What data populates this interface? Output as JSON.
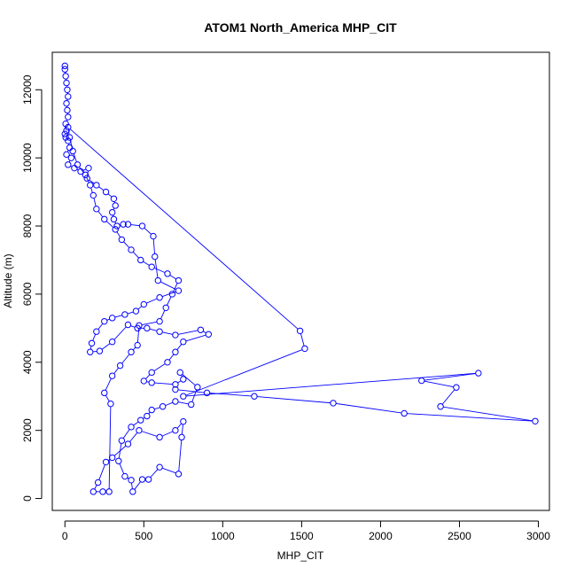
{
  "chart_data": {
    "type": "line",
    "title": "ATOM1 North_America MHP_CIT",
    "xlabel": "MHP_CIT",
    "ylabel": "Altitude (m)",
    "xlim": [
      -80,
      3070
    ],
    "ylim": [
      -350,
      13100
    ],
    "xticks": [
      0,
      500,
      1000,
      1500,
      2000,
      2500,
      3000
    ],
    "yticks": [
      0,
      2000,
      4000,
      6000,
      8000,
      10000,
      12000
    ],
    "xtick_labels": [
      "0",
      "500",
      "1000",
      "1500",
      "2000",
      "2500",
      "3000"
    ],
    "ytick_labels": [
      "0",
      "2000",
      "4000",
      "6000",
      "8000",
      "10000",
      "12000"
    ],
    "grid": false,
    "legend": "none",
    "series": [
      {
        "color": "#0000ff",
        "marker": "open-circle",
        "points": [
          [
            0,
            12700
          ],
          [
            0,
            12600
          ],
          [
            5,
            12400
          ],
          [
            10,
            12200
          ],
          [
            15,
            12000
          ],
          [
            20,
            11800
          ],
          [
            10,
            11600
          ],
          [
            15,
            11400
          ],
          [
            20,
            11200
          ],
          [
            5,
            11000
          ],
          [
            10,
            10800
          ],
          [
            0,
            10700
          ],
          [
            5,
            10600
          ],
          [
            20,
            10500
          ],
          [
            30,
            10300
          ],
          [
            10,
            10100
          ],
          [
            40,
            10000
          ],
          [
            20,
            9800
          ],
          [
            60,
            9700
          ],
          [
            100,
            9600
          ],
          [
            150,
            9700
          ],
          [
            140,
            9400
          ],
          [
            200,
            9200
          ],
          [
            260,
            9000
          ],
          [
            310,
            8800
          ],
          [
            320,
            8600
          ],
          [
            300,
            8400
          ],
          [
            310,
            8200
          ],
          [
            330,
            8000
          ],
          [
            370,
            8050
          ],
          [
            400,
            8050
          ],
          [
            490,
            8000
          ],
          [
            560,
            7700
          ],
          [
            570,
            7100
          ],
          [
            590,
            6400
          ],
          [
            720,
            6100
          ],
          [
            600,
            5900
          ],
          [
            500,
            5700
          ],
          [
            450,
            5500
          ],
          [
            380,
            5400
          ],
          [
            300,
            5300
          ],
          [
            250,
            5200
          ],
          [
            200,
            4900
          ],
          [
            170,
            4560
          ],
          [
            160,
            4300
          ],
          [
            220,
            4330
          ],
          [
            300,
            4600
          ],
          [
            400,
            5100
          ],
          [
            460,
            5000
          ],
          [
            520,
            5000
          ],
          [
            600,
            4900
          ],
          [
            700,
            4800
          ],
          [
            860,
            4950
          ],
          [
            910,
            4820
          ],
          [
            750,
            4600
          ],
          [
            700,
            4300
          ],
          [
            650,
            4000
          ],
          [
            550,
            3700
          ],
          [
            500,
            3450
          ],
          [
            550,
            3400
          ],
          [
            700,
            3350
          ],
          [
            750,
            3500
          ],
          [
            730,
            3700
          ],
          [
            840,
            3270
          ],
          [
            800,
            2760
          ],
          [
            700,
            2850
          ],
          [
            620,
            2700
          ],
          [
            550,
            2600
          ],
          [
            520,
            2420
          ],
          [
            480,
            2300
          ],
          [
            420,
            2100
          ],
          [
            360,
            1700
          ],
          [
            340,
            1100
          ],
          [
            380,
            650
          ],
          [
            420,
            540
          ],
          [
            430,
            200
          ],
          [
            490,
            560
          ],
          [
            530,
            560
          ],
          [
            600,
            920
          ],
          [
            720,
            720
          ],
          [
            740,
            1800
          ],
          [
            750,
            2260
          ],
          [
            700,
            2000
          ],
          [
            600,
            1800
          ],
          [
            470,
            2000
          ],
          [
            400,
            1600
          ],
          [
            300,
            1200
          ],
          [
            260,
            1070
          ],
          [
            210,
            470
          ],
          [
            180,
            200
          ],
          [
            240,
            200
          ],
          [
            280,
            200
          ],
          [
            290,
            2780
          ],
          [
            250,
            3100
          ],
          [
            300,
            3600
          ],
          [
            350,
            3900
          ],
          [
            420,
            4300
          ],
          [
            460,
            4500
          ],
          [
            470,
            5080
          ],
          [
            600,
            5200
          ],
          [
            640,
            5600
          ],
          [
            680,
            6000
          ],
          [
            720,
            6400
          ],
          [
            650,
            6600
          ],
          [
            550,
            6800
          ],
          [
            480,
            7000
          ],
          [
            420,
            7300
          ],
          [
            360,
            7600
          ],
          [
            320,
            7900
          ],
          [
            250,
            8200
          ],
          [
            200,
            8500
          ],
          [
            180,
            8900
          ],
          [
            160,
            9200
          ],
          [
            130,
            9500
          ],
          [
            80,
            9800
          ],
          [
            50,
            10200
          ],
          [
            30,
            10600
          ],
          [
            20,
            10900
          ],
          [
            1490,
            4920
          ],
          [
            1520,
            4400
          ],
          [
            750,
            3000
          ],
          [
            2620,
            3680
          ],
          [
            2260,
            3460
          ],
          [
            2480,
            3260
          ],
          [
            2380,
            2700
          ],
          [
            2980,
            2270
          ],
          [
            2150,
            2500
          ],
          [
            1700,
            2800
          ],
          [
            1200,
            3000
          ],
          [
            900,
            3100
          ],
          [
            700,
            3200
          ]
        ]
      }
    ]
  }
}
